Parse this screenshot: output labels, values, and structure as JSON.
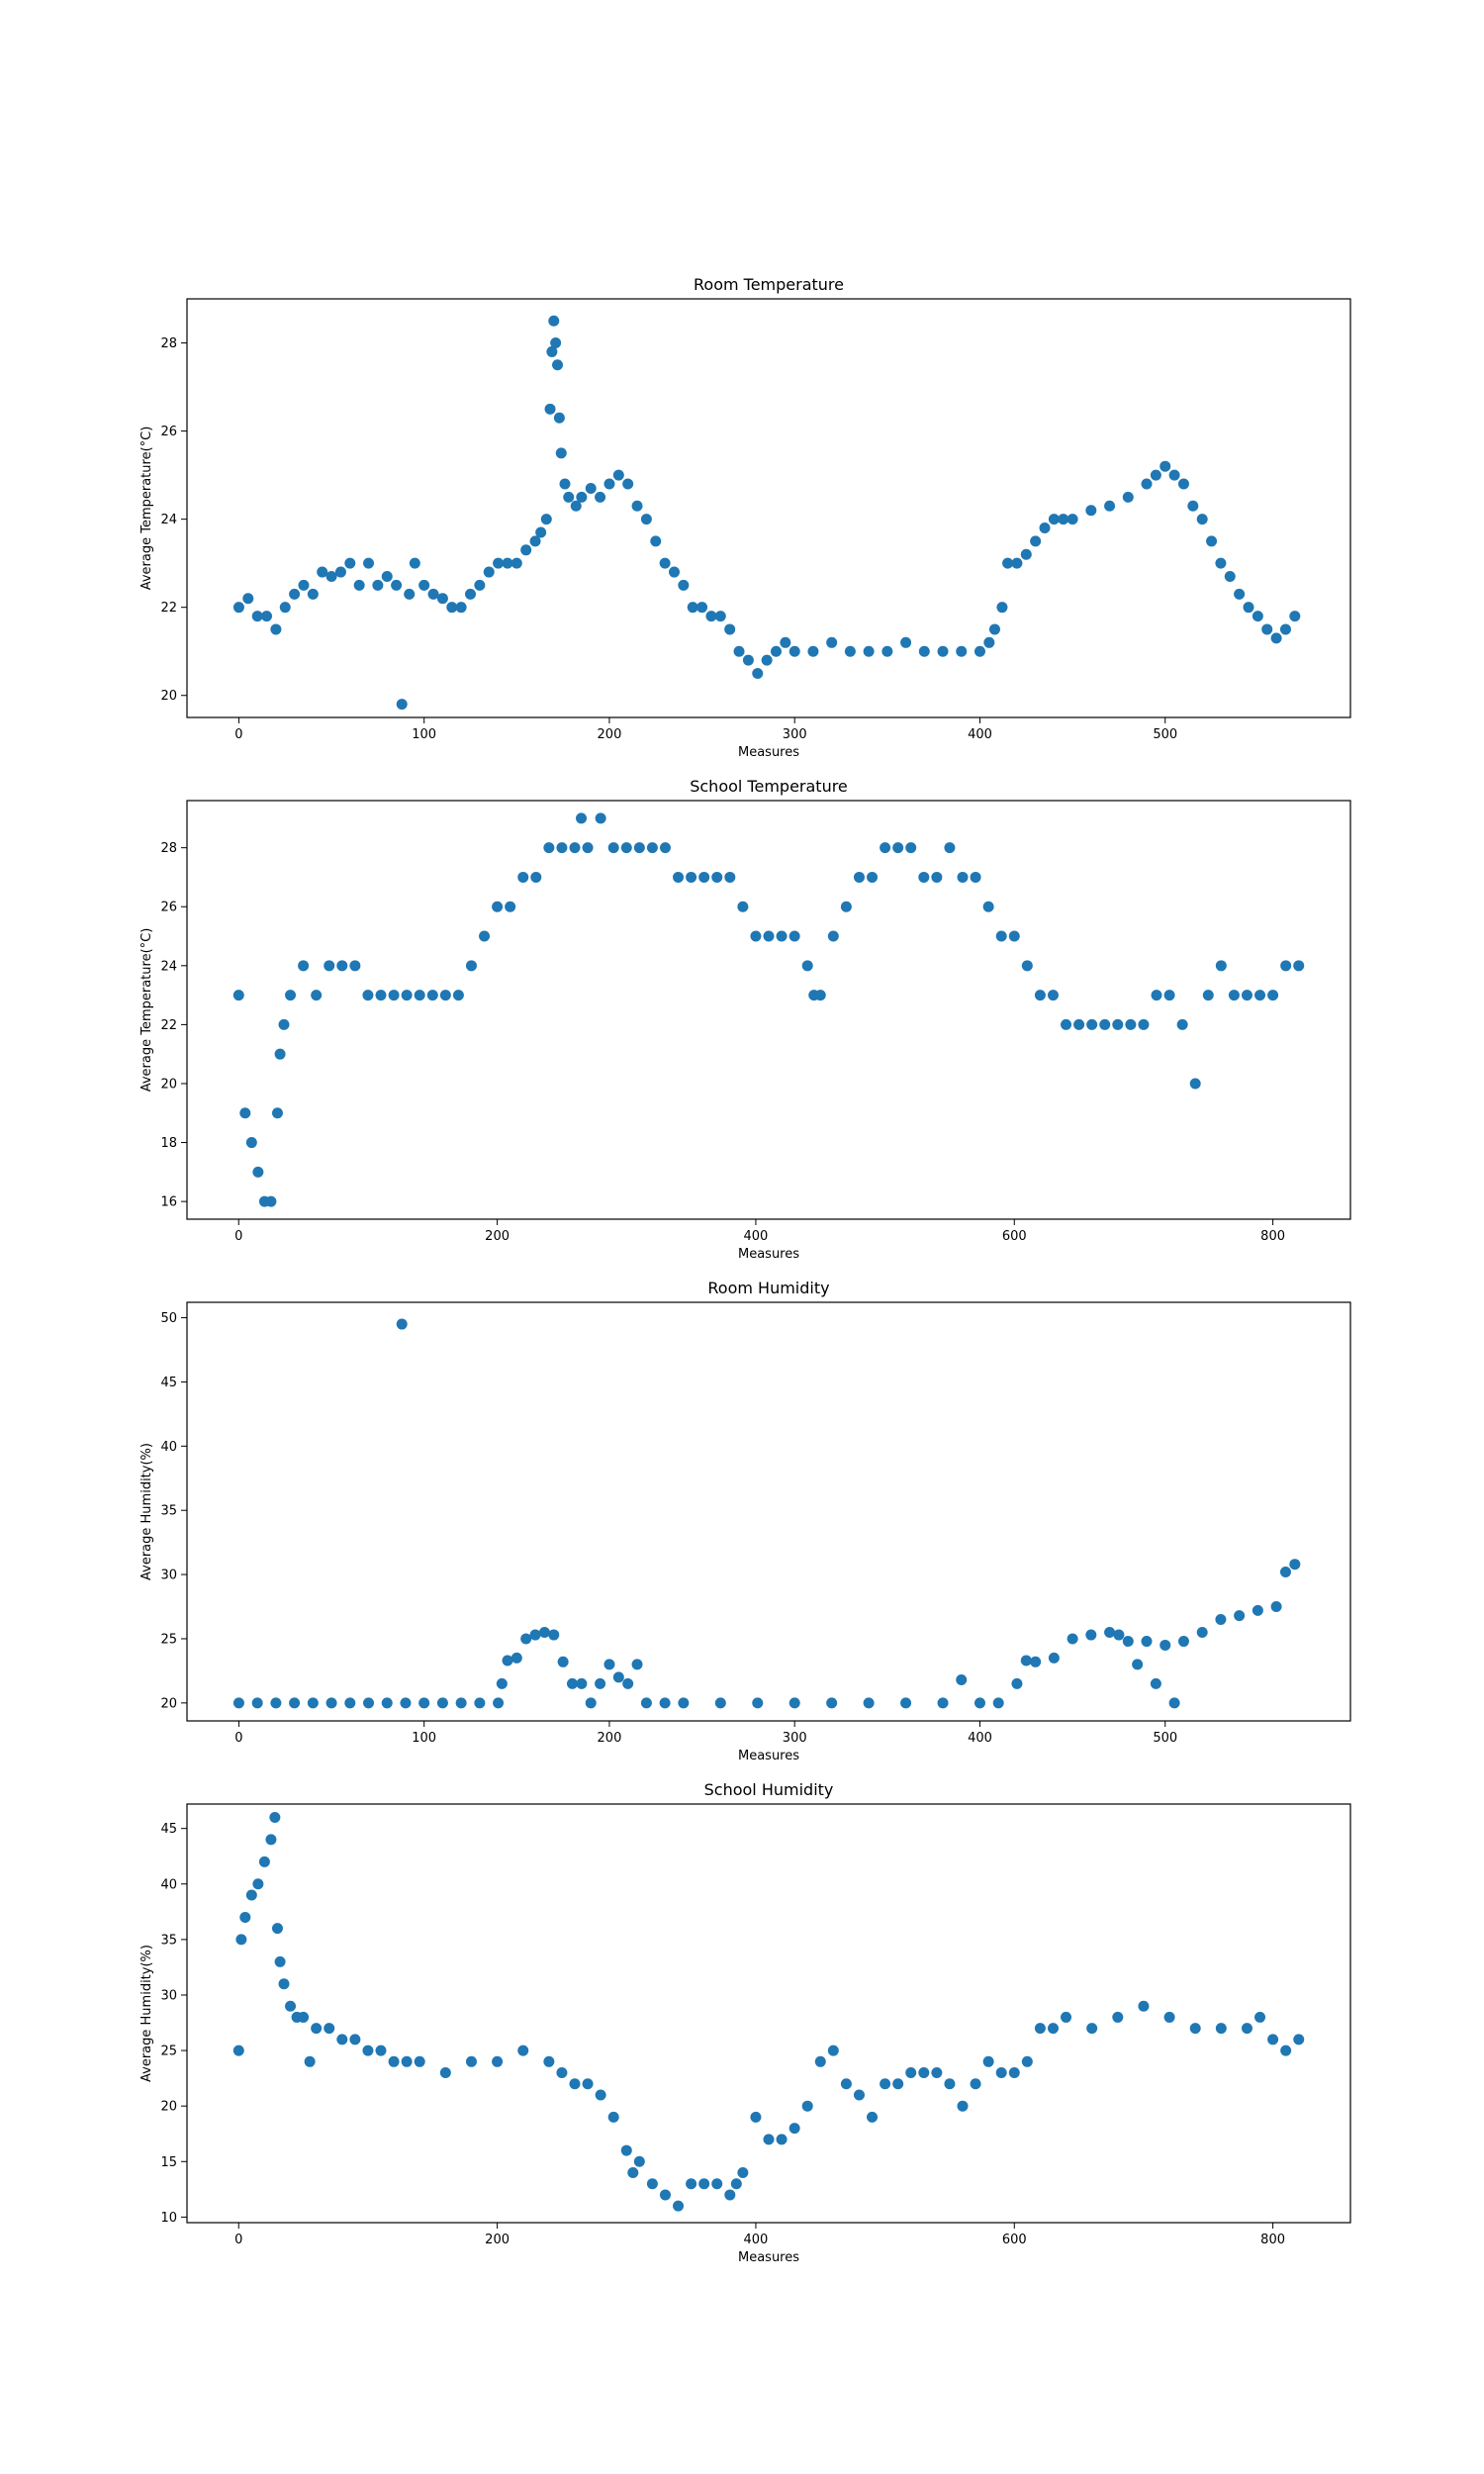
{
  "chart_data": [
    {
      "type": "scatter",
      "title": "Room Temperature",
      "xlabel": "Measures",
      "ylabel": "Average Temperature(°C)",
      "xlim": [
        -28,
        600
      ],
      "ylim": [
        19.5,
        29.0
      ],
      "xticks": [
        0,
        100,
        200,
        300,
        400,
        500
      ],
      "yticks": [
        20,
        22,
        24,
        26,
        28
      ],
      "grid": false,
      "color": "#1f77b4",
      "series": [
        {
          "x": [
            0,
            5,
            10,
            15,
            20,
            25,
            30,
            35,
            40,
            45,
            50,
            55,
            60,
            65,
            70,
            75,
            80,
            85,
            88,
            92,
            95,
            100,
            105,
            110,
            115,
            120,
            125,
            130,
            135,
            140,
            145,
            150,
            155,
            160,
            163,
            166,
            168,
            169,
            170,
            171,
            172,
            173,
            174,
            176,
            178,
            182,
            185,
            190,
            195,
            200,
            205,
            210,
            215,
            220,
            225,
            230,
            235,
            240,
            245,
            250,
            255,
            260,
            265,
            270,
            275,
            280,
            285,
            290,
            295,
            300,
            310,
            320,
            330,
            340,
            350,
            360,
            370,
            380,
            390,
            400,
            405,
            408,
            412,
            415,
            420,
            425,
            430,
            435,
            440,
            445,
            450,
            460,
            470,
            480,
            490,
            495,
            500,
            505,
            510,
            515,
            520,
            525,
            530,
            535,
            540,
            545,
            550,
            555,
            560,
            565,
            570
          ],
          "y": [
            22.0,
            22.2,
            21.8,
            21.8,
            21.5,
            22.0,
            22.3,
            22.5,
            22.3,
            22.8,
            22.7,
            22.8,
            23.0,
            22.5,
            23.0,
            22.5,
            22.7,
            22.5,
            19.8,
            22.3,
            23.0,
            22.5,
            22.3,
            22.2,
            22.0,
            22.0,
            22.3,
            22.5,
            22.8,
            23.0,
            23.0,
            23.0,
            23.3,
            23.5,
            23.7,
            24.0,
            26.5,
            27.8,
            28.5,
            28.0,
            27.5,
            26.3,
            25.5,
            24.8,
            24.5,
            24.3,
            24.5,
            24.7,
            24.5,
            24.8,
            25.0,
            24.8,
            24.3,
            24.0,
            23.5,
            23.0,
            22.8,
            22.5,
            22.0,
            22.0,
            21.8,
            21.8,
            21.5,
            21.0,
            20.8,
            20.5,
            20.8,
            21.0,
            21.2,
            21.0,
            21.0,
            21.2,
            21.0,
            21.0,
            21.0,
            21.2,
            21.0,
            21.0,
            21.0,
            21.0,
            21.2,
            21.5,
            22.0,
            23.0,
            23.0,
            23.2,
            23.5,
            23.8,
            24.0,
            24.0,
            24.0,
            24.2,
            24.3,
            24.5,
            24.8,
            25.0,
            25.2,
            25.0,
            24.8,
            24.3,
            24.0,
            23.5,
            23.0,
            22.7,
            22.3,
            22.0,
            21.8,
            21.5,
            21.3,
            21.5,
            21.8
          ]
        }
      ]
    },
    {
      "type": "scatter",
      "title": "School Temperature",
      "xlabel": "Measures",
      "ylabel": "Average Temperature(°C)",
      "xlim": [
        -40,
        860
      ],
      "ylim": [
        15.4,
        29.6
      ],
      "xticks": [
        0,
        200,
        400,
        600,
        800
      ],
      "yticks": [
        16,
        18,
        20,
        22,
        24,
        26,
        28
      ],
      "grid": false,
      "color": "#1f77b4",
      "series": [
        {
          "x": [
            0,
            5,
            10,
            15,
            20,
            25,
            30,
            32,
            35,
            40,
            50,
            60,
            70,
            80,
            90,
            100,
            110,
            120,
            130,
            140,
            150,
            160,
            170,
            180,
            190,
            200,
            210,
            220,
            230,
            240,
            250,
            260,
            265,
            270,
            280,
            290,
            300,
            310,
            320,
            330,
            340,
            350,
            360,
            370,
            380,
            390,
            400,
            410,
            420,
            430,
            440,
            445,
            450,
            460,
            470,
            480,
            490,
            500,
            510,
            520,
            530,
            540,
            550,
            560,
            570,
            580,
            590,
            600,
            610,
            620,
            630,
            640,
            650,
            660,
            670,
            680,
            690,
            700,
            710,
            720,
            730,
            740,
            750,
            760,
            770,
            780,
            790,
            800,
            810,
            820
          ],
          "y": [
            23,
            19,
            18,
            17,
            16,
            16,
            19,
            21,
            22,
            23,
            24,
            23,
            24,
            24,
            24,
            23,
            23,
            23,
            23,
            23,
            23,
            23,
            23,
            24,
            25,
            26,
            26,
            27,
            27,
            28,
            28,
            28,
            29,
            28,
            29,
            28,
            28,
            28,
            28,
            28,
            27,
            27,
            27,
            27,
            27,
            26,
            25,
            25,
            25,
            25,
            24,
            23,
            23,
            25,
            26,
            27,
            27,
            28,
            28,
            28,
            27,
            27,
            28,
            27,
            27,
            26,
            25,
            25,
            24,
            23,
            23,
            22,
            22,
            22,
            22,
            22,
            22,
            22,
            23,
            23,
            22,
            20,
            23,
            24,
            23,
            23,
            23,
            23,
            24,
            24
          ]
        }
      ]
    },
    {
      "type": "scatter",
      "title": "Room Humidity",
      "xlabel": "Measures",
      "ylabel": "Average Humidity(%)",
      "xlim": [
        -28,
        600
      ],
      "ylim": [
        18.6,
        51.2
      ],
      "xticks": [
        0,
        100,
        200,
        300,
        400,
        500
      ],
      "yticks": [
        20,
        25,
        30,
        35,
        40,
        45,
        50
      ],
      "grid": false,
      "color": "#1f77b4",
      "series": [
        {
          "x": [
            0,
            10,
            20,
            30,
            40,
            50,
            60,
            70,
            80,
            88,
            90,
            100,
            110,
            120,
            130,
            140,
            142,
            145,
            150,
            155,
            160,
            165,
            170,
            175,
            180,
            185,
            190,
            195,
            200,
            205,
            210,
            215,
            220,
            230,
            240,
            260,
            280,
            300,
            320,
            340,
            360,
            380,
            390,
            400,
            410,
            420,
            425,
            430,
            440,
            450,
            460,
            470,
            475,
            480,
            485,
            490,
            495,
            500,
            505,
            510,
            520,
            530,
            540,
            550,
            560,
            565,
            570
          ],
          "y": [
            20,
            20,
            20,
            20,
            20,
            20,
            20,
            20,
            20,
            49.5,
            20,
            20,
            20,
            20,
            20,
            20,
            21.5,
            23.3,
            23.5,
            25,
            25.3,
            25.5,
            25.3,
            23.2,
            21.5,
            21.5,
            20,
            21.5,
            23,
            22,
            21.5,
            23,
            20,
            20,
            20,
            20,
            20,
            20,
            20,
            20,
            20,
            20,
            21.8,
            20,
            20,
            21.5,
            23.3,
            23.2,
            23.5,
            25,
            25.3,
            25.5,
            25.3,
            24.8,
            23,
            24.8,
            21.5,
            24.5,
            20,
            24.8,
            25.5,
            26.5,
            26.8,
            27.2,
            27.5,
            30.2,
            30.8
          ]
        }
      ]
    },
    {
      "type": "scatter",
      "title": "School Humidity",
      "xlabel": "Measures",
      "ylabel": "Average Humidity(%)",
      "xlim": [
        -40,
        860
      ],
      "ylim": [
        9.5,
        47.2
      ],
      "xticks": [
        0,
        200,
        400,
        600,
        800
      ],
      "yticks": [
        10,
        15,
        20,
        25,
        30,
        35,
        40,
        45
      ],
      "grid": false,
      "color": "#1f77b4",
      "series": [
        {
          "x": [
            0,
            2,
            5,
            10,
            15,
            20,
            25,
            28,
            30,
            32,
            35,
            40,
            45,
            50,
            55,
            60,
            70,
            80,
            90,
            100,
            110,
            120,
            130,
            140,
            160,
            180,
            200,
            220,
            240,
            250,
            260,
            270,
            280,
            290,
            300,
            305,
            310,
            320,
            330,
            340,
            350,
            360,
            370,
            380,
            385,
            390,
            400,
            410,
            420,
            430,
            440,
            450,
            460,
            470,
            480,
            490,
            500,
            510,
            520,
            530,
            540,
            550,
            560,
            570,
            580,
            590,
            600,
            610,
            620,
            630,
            640,
            660,
            680,
            700,
            720,
            740,
            760,
            780,
            790,
            800,
            810,
            820
          ],
          "y": [
            25,
            35,
            37,
            39,
            40,
            42,
            44,
            46,
            36,
            33,
            31,
            29,
            28,
            28,
            24,
            27,
            27,
            26,
            26,
            25,
            25,
            24,
            24,
            24,
            23,
            24,
            24,
            25,
            24,
            23,
            22,
            22,
            21,
            19,
            16,
            14,
            15,
            13,
            12,
            11,
            13,
            13,
            13,
            12,
            13,
            14,
            19,
            17,
            17,
            18,
            20,
            24,
            25,
            22,
            21,
            19,
            22,
            22,
            23,
            23,
            23,
            22,
            20,
            22,
            24,
            23,
            23,
            24,
            27,
            27,
            28,
            27,
            28,
            29,
            28,
            27,
            27,
            27,
            28,
            26,
            25,
            26
          ]
        }
      ]
    }
  ]
}
